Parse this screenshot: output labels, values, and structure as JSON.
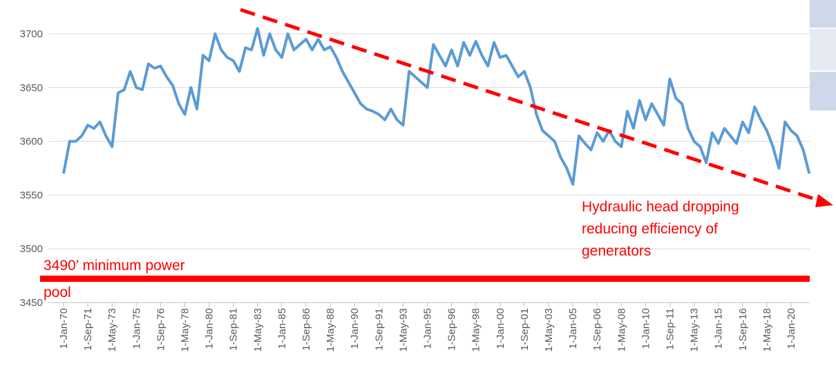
{
  "chart_data": {
    "type": "line",
    "categories": [
      "1-Jan-70",
      null,
      null,
      null,
      "1-Sep-71",
      null,
      null,
      null,
      "1-May-73",
      null,
      null,
      null,
      "1-Jan-75",
      null,
      null,
      null,
      "1-Sep-76",
      null,
      null,
      null,
      "1-May-78",
      null,
      null,
      null,
      "1-Jan-80",
      null,
      null,
      null,
      "1-Sep-81",
      null,
      null,
      null,
      "1-May-83",
      null,
      null,
      null,
      "1-Jan-85",
      null,
      null,
      null,
      "1-Sep-86",
      null,
      null,
      null,
      "1-May-88",
      null,
      null,
      null,
      "1-Jan-90",
      null,
      null,
      null,
      "1-Sep-91",
      null,
      null,
      null,
      "1-May-93",
      null,
      null,
      null,
      "1-Jan-95",
      null,
      null,
      null,
      "1-Sep-96",
      null,
      null,
      null,
      "1-May-98",
      null,
      null,
      null,
      "1-Jan-00",
      null,
      null,
      null,
      "1-Sep-01",
      null,
      null,
      null,
      "1-May-03",
      null,
      null,
      null,
      "1-Jan-05",
      null,
      null,
      null,
      "1-Sep-06",
      null,
      null,
      null,
      "1-May-08",
      null,
      null,
      null,
      "1-Jan-10",
      null,
      null,
      null,
      "1-Sep-11",
      null,
      null,
      null,
      "1-May-13",
      null,
      null,
      null,
      "1-Jan-15",
      null,
      null,
      null,
      "1-Sep-16",
      null,
      null,
      null,
      "1-May-18",
      null,
      null,
      null,
      "1-Jan-20",
      null,
      null,
      null
    ],
    "series": [
      {
        "color": "#5b9bd5",
        "values": [
          3570,
          3600,
          3600,
          3605,
          3615,
          3612,
          3618,
          3605,
          3595,
          3645,
          3648,
          3665,
          3650,
          3648,
          3672,
          3668,
          3670,
          3660,
          3652,
          3635,
          3625,
          3650,
          3630,
          3680,
          3675,
          3700,
          3685,
          3678,
          3675,
          3665,
          3687,
          3685,
          3705,
          3680,
          3700,
          3685,
          3678,
          3700,
          3685,
          3690,
          3695,
          3685,
          3695,
          3685,
          3688,
          3678,
          3665,
          3655,
          3645,
          3635,
          3630,
          3628,
          3625,
          3620,
          3630,
          3620,
          3615,
          3665,
          3660,
          3655,
          3650,
          3690,
          3680,
          3670,
          3685,
          3670,
          3692,
          3680,
          3693,
          3680,
          3670,
          3692,
          3678,
          3680,
          3670,
          3660,
          3665,
          3650,
          3625,
          3610,
          3605,
          3600,
          3585,
          3575,
          3560,
          3605,
          3598,
          3592,
          3608,
          3600,
          3610,
          3600,
          3595,
          3628,
          3612,
          3638,
          3620,
          3635,
          3625,
          3615,
          3658,
          3640,
          3635,
          3612,
          3600,
          3595,
          3580,
          3608,
          3598,
          3612,
          3605,
          3598,
          3618,
          3608,
          3632,
          3620,
          3610,
          3595,
          3575,
          3618,
          3610,
          3605,
          3592,
          3570
        ]
      }
    ],
    "ylim": [
      3450,
      3715
    ],
    "yticks": [
      3450,
      3500,
      3550,
      3600,
      3650,
      3700
    ],
    "grid": true,
    "annotations": [
      [
        "Hydraulic head dropping",
        "reducing efficiency of",
        "generators"
      ],
      [
        "3490’ minimum power",
        "pool"
      ]
    ]
  }
}
